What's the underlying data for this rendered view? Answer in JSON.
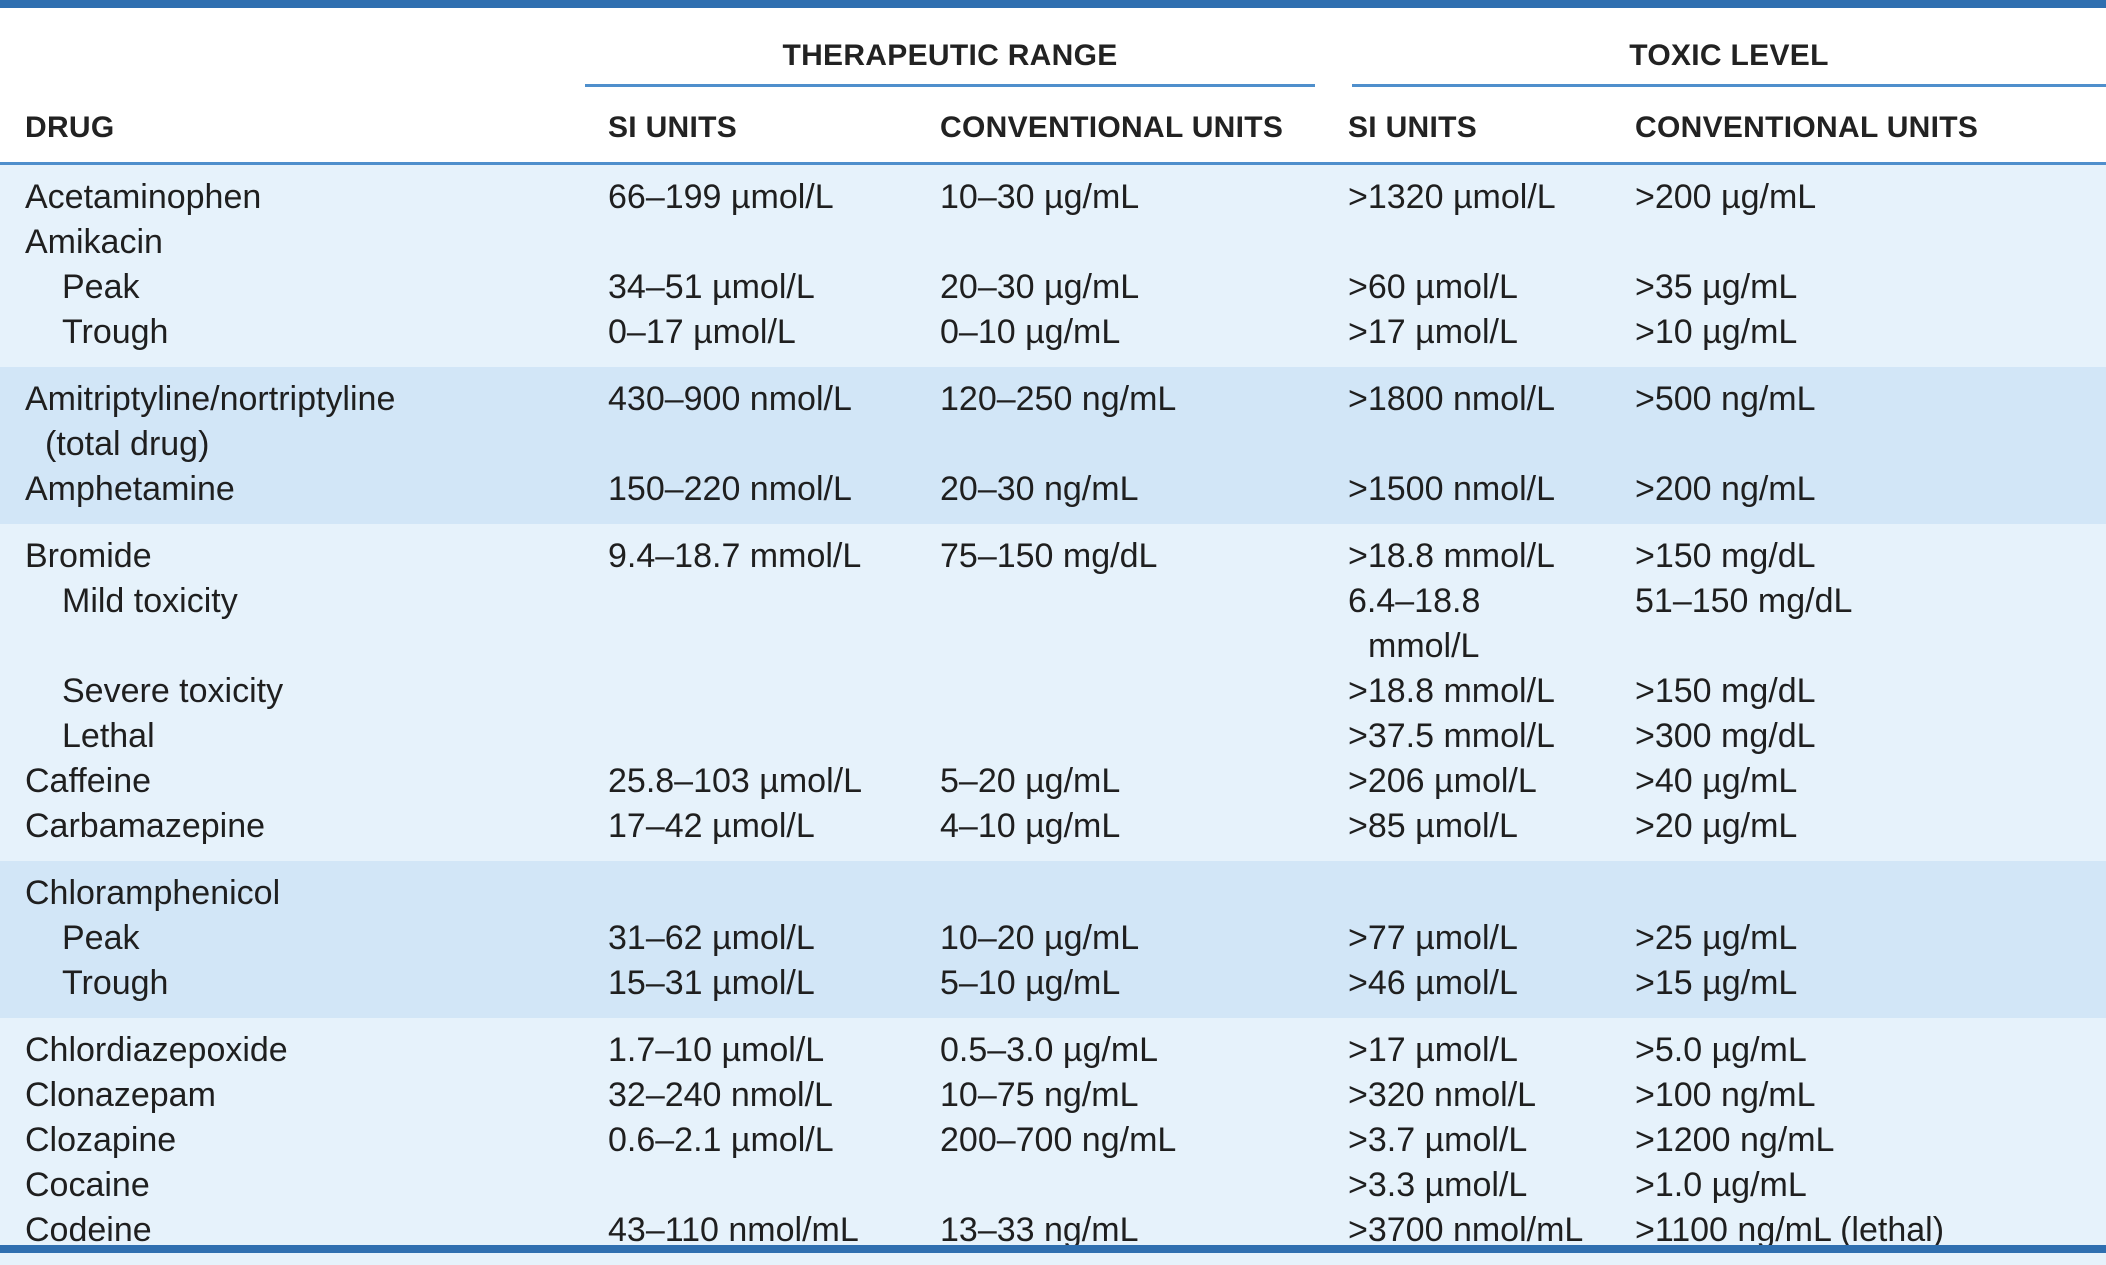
{
  "header": {
    "groups": [
      "THERAPEUTIC RANGE",
      "TOXIC LEVEL"
    ],
    "columns": [
      "DRUG",
      "SI UNITS",
      "CONVENTIONAL UNITS",
      "SI UNITS",
      "CONVENTIONAL UNITS"
    ]
  },
  "colors": {
    "accent": "#2f6fb0",
    "rule": "#4f8fcc",
    "band_light": "#e6f2fb",
    "band_mid": "#d2e6f7"
  },
  "groups": [
    {
      "shade": "light",
      "rows": [
        {
          "drug": "Acetaminophen",
          "indent": false,
          "ther_si": "66–199 µmol/L",
          "ther_conv": "10–30 µg/mL",
          "tox_si": ">1320 µmol/L",
          "tox_conv": ">200 µg/mL"
        },
        {
          "drug": "Amikacin",
          "indent": false,
          "ther_si": "",
          "ther_conv": "",
          "tox_si": "",
          "tox_conv": ""
        },
        {
          "drug": "Peak",
          "indent": true,
          "ther_si": "34–51 µmol/L",
          "ther_conv": "20–30 µg/mL",
          "tox_si": ">60 µmol/L",
          "tox_conv": ">35 µg/mL"
        },
        {
          "drug": "Trough",
          "indent": true,
          "ther_si": "0–17 µmol/L",
          "ther_conv": "0–10 µg/mL",
          "tox_si": ">17 µmol/L",
          "tox_conv": ">10 µg/mL"
        }
      ]
    },
    {
      "shade": "mid",
      "rows": [
        {
          "drug": "Amitriptyline/nortriptyline",
          "drug_cont": "(total drug)",
          "indent": false,
          "ther_si": "430–900 nmol/L",
          "ther_conv": "120–250 ng/mL",
          "tox_si": ">1800 nmol/L",
          "tox_conv": ">500 ng/mL"
        },
        {
          "drug": "Amphetamine",
          "indent": false,
          "ther_si": "150–220 nmol/L",
          "ther_conv": "20–30 ng/mL",
          "tox_si": ">1500 nmol/L",
          "tox_conv": ">200 ng/mL"
        }
      ]
    },
    {
      "shade": "light",
      "rows": [
        {
          "drug": "Bromide",
          "indent": false,
          "ther_si": "9.4–18.7 mmol/L",
          "ther_conv": "75–150 mg/dL",
          "tox_si": ">18.8 mmol/L",
          "tox_conv": ">150 mg/dL"
        },
        {
          "drug": "Mild toxicity",
          "indent": true,
          "ther_si": "",
          "ther_conv": "",
          "tox_si": "6.4–18.8",
          "tox_si_cont": "mmol/L",
          "tox_conv": "51–150 mg/dL"
        },
        {
          "drug": "Severe toxicity",
          "indent": true,
          "ther_si": "",
          "ther_conv": "",
          "tox_si": ">18.8 mmol/L",
          "tox_conv": ">150 mg/dL"
        },
        {
          "drug": "Lethal",
          "indent": true,
          "ther_si": "",
          "ther_conv": "",
          "tox_si": ">37.5 mmol/L",
          "tox_conv": ">300 mg/dL"
        },
        {
          "drug": "Caffeine",
          "indent": false,
          "ther_si": "25.8–103 µmol/L",
          "ther_conv": "5–20 µg/mL",
          "tox_si": ">206 µmol/L",
          "tox_conv": ">40 µg/mL"
        },
        {
          "drug": "Carbamazepine",
          "indent": false,
          "ther_si": "17–42 µmol/L",
          "ther_conv": "4–10 µg/mL",
          "tox_si": ">85 µmol/L",
          "tox_conv": ">20 µg/mL"
        }
      ]
    },
    {
      "shade": "mid",
      "rows": [
        {
          "drug": "Chloramphenicol",
          "indent": false,
          "ther_si": "",
          "ther_conv": "",
          "tox_si": "",
          "tox_conv": ""
        },
        {
          "drug": "Peak",
          "indent": true,
          "ther_si": "31–62 µmol/L",
          "ther_conv": "10–20 µg/mL",
          "tox_si": ">77 µmol/L",
          "tox_conv": ">25 µg/mL"
        },
        {
          "drug": "Trough",
          "indent": true,
          "ther_si": "15–31 µmol/L",
          "ther_conv": "5–10 µg/mL",
          "tox_si": ">46 µmol/L",
          "tox_conv": ">15 µg/mL"
        }
      ]
    },
    {
      "shade": "light",
      "rows": [
        {
          "drug": "Chlordiazepoxide",
          "indent": false,
          "ther_si": "1.7–10 µmol/L",
          "ther_conv": "0.5–3.0 µg/mL",
          "tox_si": ">17 µmol/L",
          "tox_conv": ">5.0 µg/mL"
        },
        {
          "drug": "Clonazepam",
          "indent": false,
          "ther_si": "32–240 nmol/L",
          "ther_conv": "10–75 ng/mL",
          "tox_si": ">320 nmol/L",
          "tox_conv": ">100 ng/mL"
        },
        {
          "drug": "Clozapine",
          "indent": false,
          "ther_si": "0.6–2.1 µmol/L",
          "ther_conv": "200–700 ng/mL",
          "tox_si": ">3.7 µmol/L",
          "tox_conv": ">1200 ng/mL"
        },
        {
          "drug": "Cocaine",
          "indent": false,
          "ther_si": "",
          "ther_conv": "",
          "tox_si": ">3.3 µmol/L",
          "tox_conv": ">1.0 µg/mL"
        },
        {
          "drug": "Codeine",
          "indent": false,
          "ther_si": "43–110 nmol/mL",
          "ther_conv": "13–33 ng/mL",
          "tox_si": ">3700 nmol/mL",
          "tox_conv": ">1100 ng/mL (lethal)"
        }
      ]
    }
  ]
}
